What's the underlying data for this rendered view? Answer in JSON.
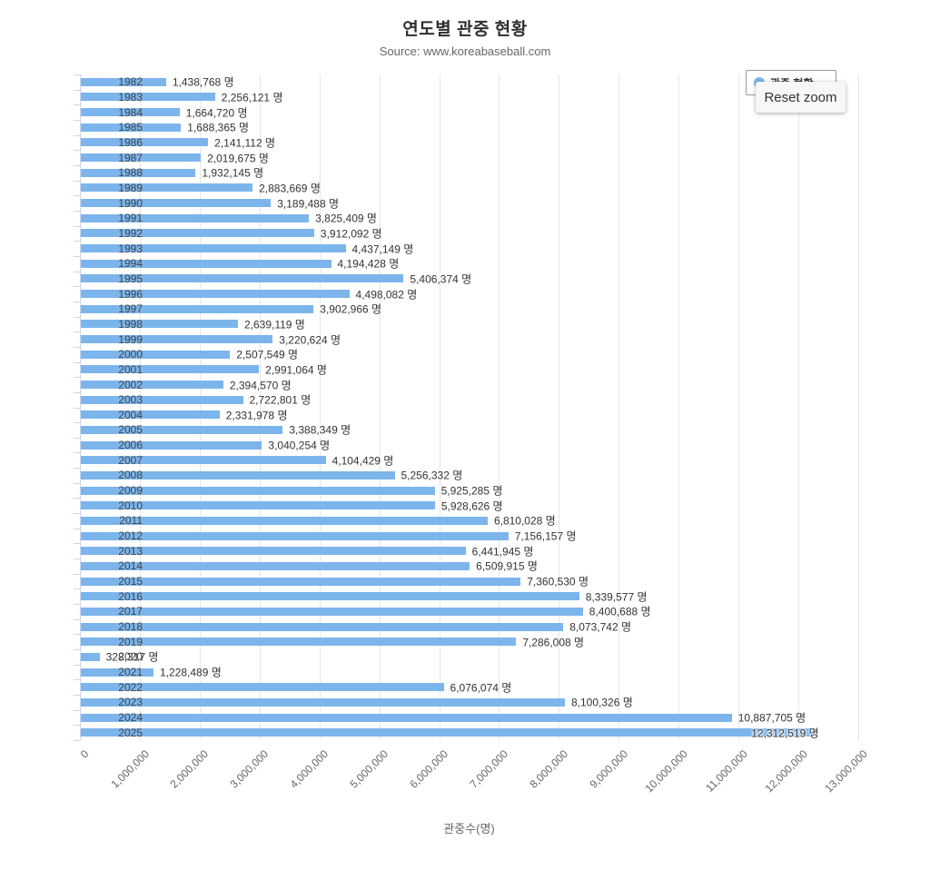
{
  "header": {
    "title": "연도별 관중 현황",
    "subtitle": "Source: www.koreabaseball.com"
  },
  "buttons": {
    "reset_zoom": "Reset zoom"
  },
  "legend": {
    "series_label": "관중 현황",
    "marker_color": "#7cb5ec"
  },
  "colors": {
    "bar": "#7cb5ec",
    "grid": "#e6e6e6",
    "axis_line": "#ccd6eb",
    "label_text": "#333",
    "tick_text": "#666"
  },
  "chart_data": {
    "type": "bar",
    "orientation": "horizontal",
    "title": "연도별 관중 현황",
    "subtitle": "Source: www.koreabaseball.com",
    "series_name": "관중 현황",
    "xlabel": "관중수(명)",
    "ylabel": "",
    "value_suffix": " 명",
    "xlim": [
      0,
      13000000
    ],
    "tick_interval": 1000000,
    "tick_labels": [
      "0",
      "1,000,000",
      "2,000,000",
      "3,000,000",
      "4,000,000",
      "5,000,000",
      "6,000,000",
      "7,000,000",
      "8,000,000",
      "9,000,000",
      "10,000,000",
      "11,000,000",
      "12,000,000",
      "13,000,000"
    ],
    "grid": true,
    "legend_position": "top-right",
    "categories": [
      "1982",
      "1983",
      "1984",
      "1985",
      "1986",
      "1987",
      "1988",
      "1989",
      "1990",
      "1991",
      "1992",
      "1993",
      "1994",
      "1995",
      "1996",
      "1997",
      "1998",
      "1999",
      "2000",
      "2001",
      "2002",
      "2003",
      "2004",
      "2005",
      "2006",
      "2007",
      "2008",
      "2009",
      "2010",
      "2011",
      "2012",
      "2013",
      "2014",
      "2015",
      "2016",
      "2017",
      "2018",
      "2019",
      "2020",
      "2021",
      "2022",
      "2023",
      "2024",
      "2025"
    ],
    "values": [
      1438768,
      2256121,
      1664720,
      1688365,
      2141112,
      2019675,
      1932145,
      2883669,
      3189488,
      3825409,
      3912092,
      4437149,
      4194428,
      5406374,
      4498082,
      3902966,
      2639119,
      3220624,
      2507549,
      2991064,
      2394570,
      2722801,
      2331978,
      3388349,
      3040254,
      4104429,
      5256332,
      5925285,
      5928626,
      6810028,
      7156157,
      6441945,
      6509915,
      7360530,
      8339577,
      8400688,
      8073742,
      7286008,
      328317,
      1228489,
      6076074,
      8100326,
      10887705,
      12312519
    ]
  }
}
